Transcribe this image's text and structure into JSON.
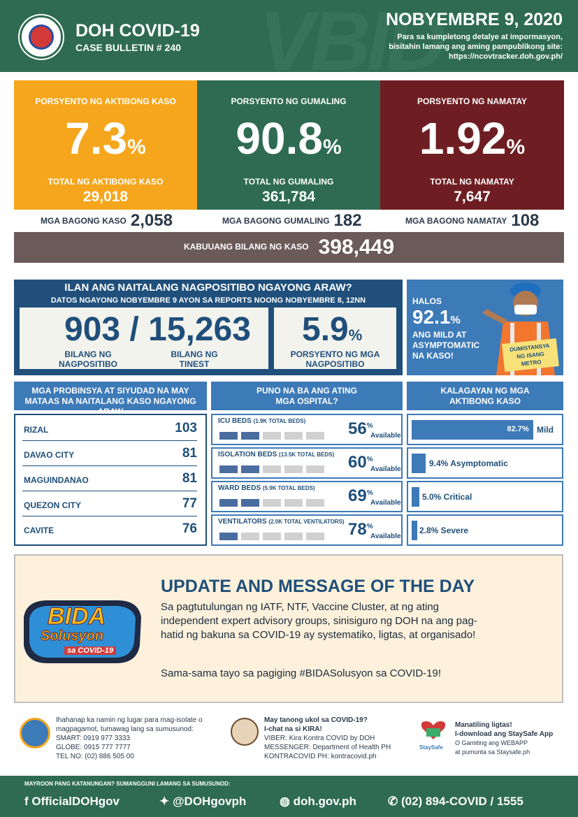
{
  "header": {
    "title": "DOH COVID-19",
    "bulletin": "CASE BULLETIN # 240",
    "date": "NOBYEMBRE 9, 2020",
    "note1": "Para sa kumpletong detalye at impormasyon,",
    "note2": "bisitahin lamang ang aming pampublikong site:",
    "site": "https://ncovtracker.doh.gov.ph/"
  },
  "active": {
    "label": "PORSYENTO NG AKTIBONG KASO",
    "pct": "7.3",
    "unit": "%",
    "total_label": "TOTAL NG AKTIBONG KASO",
    "total": "29,018",
    "new_label": "MGA BAGONG KASO",
    "new": "2,058",
    "color": "#f5a61c"
  },
  "recovered": {
    "label": "PORSYENTO NG GUMALING",
    "pct": "90.8",
    "unit": "%",
    "total_label": "TOTAL NG GUMALING",
    "total": "361,784",
    "new_label": "MGA BAGONG GUMALING",
    "new": "182",
    "color": "#2e6b52"
  },
  "deaths": {
    "label": "PORSYENTO NG NAMATAY",
    "pct": "1.92",
    "unit": "%",
    "total_label": "TOTAL NG NAMATAY",
    "total": "7,647",
    "new_label": "MGA BAGONG NAMATAY",
    "new": "108",
    "color": "#6e1e22"
  },
  "total": {
    "label": "KABUUANG BILANG NG KASO",
    "value": "398,449"
  },
  "positive": {
    "q": "ILAN ANG NAITALANG NAGPOSITIBO NGAYONG ARAW?",
    "sub": "DATOS NGAYONG NOBYEMBRE 9 AYON SA REPORTS NOONG NOBYEMBRE 8, 12NN",
    "positives": "903",
    "slash": "/",
    "tested": "15,263",
    "pos_label": "BILANG NG NAGPOSITIBO",
    "test_label": "BILANG NG TINEST",
    "rate": "5.9",
    "unit": "%",
    "rate_label": "PORSYENTO NG MGA NAGPOSITIBO"
  },
  "mild": {
    "halos": "HALOS",
    "pct": "92.1",
    "unit": "%",
    "line1": "ANG MILD AT",
    "line2": "ASYMPTOMATIC",
    "line3": "NA KASO!",
    "sign1": "DUMISTANSYA",
    "sign2": "NG ISANG",
    "sign3": "METRO"
  },
  "provinces": {
    "title": "MGA PROBINSYA AT SIYUDAD NA MAY MATAAS NA NAITALANG KASO NGAYONG ARAW",
    "rows": [
      {
        "name": "RIZAL",
        "value": "103"
      },
      {
        "name": "DAVAO CITY",
        "value": "81"
      },
      {
        "name": "MAGUINDANAO",
        "value": "81"
      },
      {
        "name": "QUEZON CITY",
        "value": "77"
      },
      {
        "name": "CAVITE",
        "value": "76"
      }
    ]
  },
  "hospitals": {
    "title": "PUNO NA BA ANG ATING MGA OSPITAL?",
    "rows": [
      {
        "label": "ICU BEDS",
        "cap": "(1.9K TOTAL BEDS)",
        "pct": "56",
        "avail": "Available",
        "fraction": 0.56
      },
      {
        "label": "ISOLATION BEDS",
        "cap": "(13.5K TOTAL BEDS)",
        "pct": "60",
        "avail": "Available",
        "fraction": 0.6
      },
      {
        "label": "WARD BEDS",
        "cap": "(5.9K TOTAL BEDS)",
        "pct": "69",
        "avail": "Available",
        "fraction": 0.69
      },
      {
        "label": "VENTILATORS",
        "cap": "(2.0K TOTAL VENTILATORS)",
        "pct": "78",
        "avail": "Available",
        "fraction": 0.78
      }
    ],
    "pct_sign": "%"
  },
  "status": {
    "title": "KALAGAYAN NG MGA AKTIBONG KASO",
    "rows": [
      {
        "label": "Mild",
        "pct": "82.7%",
        "value": 82.7
      },
      {
        "label": "9.4% Asymptomatic",
        "value": 9.4
      },
      {
        "label": "5.0% Critical",
        "value": 5.0
      },
      {
        "label": "2.8% Severe",
        "value": 2.8
      }
    ]
  },
  "update": {
    "title": "UPDATE AND MESSAGE OF THE DAY",
    "body": "Sa pagtutulungan ng IATF, NTF, Vaccine Cluster, at ng ating independent expert advisory groups, sinisiguro ng DOH na ang pag-hatid ng bakuna sa COVID-19 ay systematiko, ligtas, at organisado!",
    "body2": "Sama-sama tayo sa pagiging #BIDASolusyon sa COVID-19!",
    "logo1": "BIDA",
    "logo2": "Solusyon",
    "logo3": "sa COVID-19"
  },
  "contacts": {
    "c1a": "Ihahanap ka namin ng lugar para mag-isolate o",
    "c1b": "magpagamot, tumawag lang sa sumusunod:",
    "smart": "SMART: 0919 977 3333",
    "globe": "GLOBE: 0915 777 7777",
    "tel": "TEL NO: (02) 886 505 00",
    "c2a": "May tanong ukol sa COVID-19?",
    "c2b": "I-chat na si KIRA!",
    "viber": "VIBER: Kira Kontra COVID by DOH",
    "messenger": "MESSENGER: Department of Health PH",
    "kontra": "KONTRACOVID PH: kontracovid.ph",
    "c3a": "Manatiling ligtas!",
    "c3b": "I-download ang StaySafe App",
    "c3c": "O Gamiting ang WEBAPP",
    "c3d": "at pumunta sa Staysafe.ph",
    "staysafe": "StaySafe"
  },
  "footer": {
    "q": "MAYROON PANG KATANUNGAN? SUMANGGUNI LAMANG SA SUMUSUNOD:",
    "fb": "OfficialDOHgov",
    "tw": "@DOHgovph",
    "web": "doh.gov.ph",
    "phone": "(02) 894-COVID  /  1555"
  }
}
